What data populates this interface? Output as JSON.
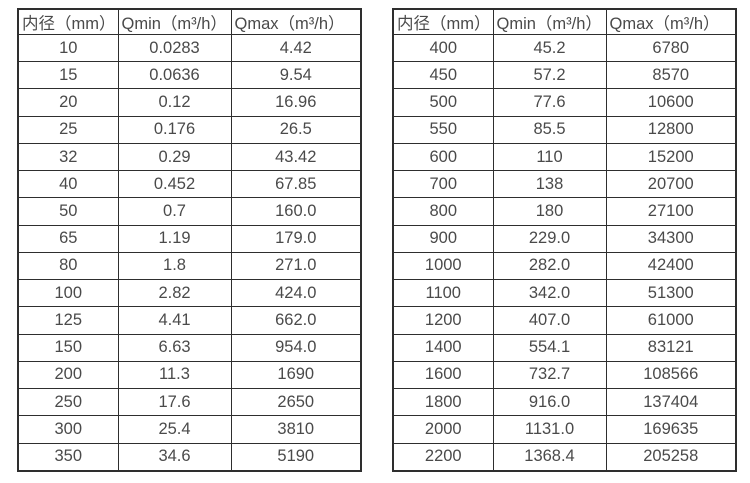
{
  "colors": {
    "background": "#ffffff",
    "border": "#2e2e2e",
    "text": "#4a4a4a"
  },
  "columns": {
    "diameter": "内径（mm）",
    "qmin": "Qmin（m³/h）",
    "qmax": "Qmax（m³/h）"
  },
  "left_table": {
    "rows": [
      [
        "10",
        "0.0283",
        "4.42"
      ],
      [
        "15",
        "0.0636",
        "9.54"
      ],
      [
        "20",
        "0.12",
        "16.96"
      ],
      [
        "25",
        "0.176",
        "26.5"
      ],
      [
        "32",
        "0.29",
        "43.42"
      ],
      [
        "40",
        "0.452",
        "67.85"
      ],
      [
        "50",
        "0.7",
        "160.0"
      ],
      [
        "65",
        "1.19",
        "179.0"
      ],
      [
        "80",
        "1.8",
        "271.0"
      ],
      [
        "100",
        "2.82",
        "424.0"
      ],
      [
        "125",
        "4.41",
        "662.0"
      ],
      [
        "150",
        "6.63",
        "954.0"
      ],
      [
        "200",
        "11.3",
        "1690"
      ],
      [
        "250",
        "17.6",
        "2650"
      ],
      [
        "300",
        "25.4",
        "3810"
      ],
      [
        "350",
        "34.6",
        "5190"
      ]
    ]
  },
  "right_table": {
    "rows": [
      [
        "400",
        "45.2",
        "6780"
      ],
      [
        "450",
        "57.2",
        "8570"
      ],
      [
        "500",
        "77.6",
        "10600"
      ],
      [
        "550",
        "85.5",
        "12800"
      ],
      [
        "600",
        "110",
        "15200"
      ],
      [
        "700",
        "138",
        "20700"
      ],
      [
        "800",
        "180",
        "27100"
      ],
      [
        "900",
        "229.0",
        "34300"
      ],
      [
        "1000",
        "282.0",
        "42400"
      ],
      [
        "1100",
        "342.0",
        "51300"
      ],
      [
        "1200",
        "407.0",
        "61000"
      ],
      [
        "1400",
        "554.1",
        "83121"
      ],
      [
        "1600",
        "732.7",
        "108566"
      ],
      [
        "1800",
        "916.0",
        "137404"
      ],
      [
        "2000",
        "1131.0",
        "169635"
      ],
      [
        "2200",
        "1368.4",
        "205258"
      ]
    ]
  }
}
